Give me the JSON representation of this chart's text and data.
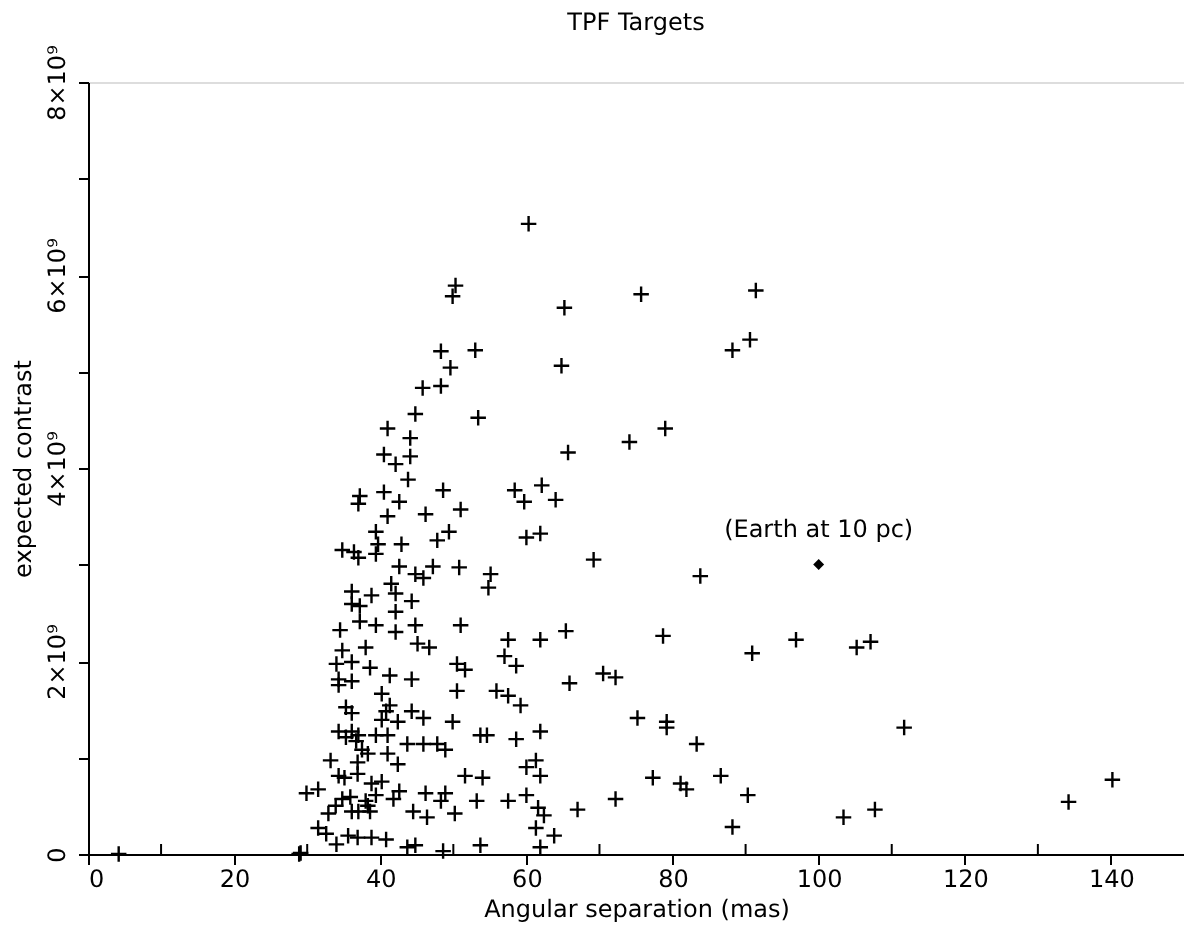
{
  "chart_data": {
    "type": "scatter",
    "title": "TPF Targets",
    "xlabel": "Angular separation (mas)",
    "ylabel": "expected contrast",
    "xlim": [
      0,
      150
    ],
    "ylim": [
      0,
      8000000000.0
    ],
    "xticks": [
      0,
      {
        "value": 10,
        "label": null
      },
      20,
      {
        "value": 30,
        "label": null
      },
      40,
      {
        "value": 50,
        "label": null
      },
      60,
      {
        "value": 70,
        "label": null
      },
      80,
      {
        "value": 90,
        "label": null
      },
      100,
      {
        "value": 110,
        "label": null
      },
      120,
      {
        "value": 130,
        "label": null
      },
      140
    ],
    "yticks": [
      0,
      {
        "value": 1000000000.0,
        "label": null
      },
      {
        "value": 2000000000.0,
        "label": "2×10⁹"
      },
      {
        "value": 3000000000.0,
        "label": null
      },
      {
        "value": 4000000000.0,
        "label": "4×10⁹"
      },
      {
        "value": 5000000000.0,
        "label": null
      },
      {
        "value": 6000000000.0,
        "label": "6×10⁹"
      },
      {
        "value": 7000000000.0,
        "label": null
      },
      {
        "value": 8000000000.0,
        "label": "8×10⁹"
      }
    ],
    "grid": false,
    "series": [
      {
        "type": "scatter",
        "marker": "cross",
        "color": "#000000",
        "x": [
          60.3,
          50.3,
          49.9,
          65.2,
          48.3,
          53.0,
          49.6,
          64.8,
          45.8,
          48.3,
          44.8,
          53.4,
          41.0,
          40.5,
          44.1,
          42.1,
          44.1,
          43.8,
          65.7,
          75.7,
          91.4,
          88.2,
          90.6,
          74.1,
          79.0,
          69.2,
          83.8,
          78.7,
          96.9,
          105.2,
          107.1,
          90.9,
          70.5,
          72.2,
          65.9,
          75.2,
          79.2,
          79.2,
          83.3,
          111.7,
          77.3,
          81.1,
          81.9,
          86.6,
          90.3,
          72.2,
          67.0,
          88.2,
          103.4,
          107.7,
          134.2,
          140.2,
          37.2,
          37.0,
          40.5,
          42.6,
          48.6,
          41.0,
          46.2,
          51.0,
          58.4,
          59.7,
          62.1,
          64.0,
          39.4,
          34.8,
          36.4,
          37.0,
          39.4,
          39.7,
          42.9,
          47.8,
          49.4,
          60.0,
          61.9,
          42.6,
          47.2,
          50.8,
          44.8,
          45.9,
          55.1,
          54.8,
          41.5,
          36.1,
          38.8,
          42.1,
          36.1,
          37.2,
          44.3,
          42.1,
          37.2,
          39.4,
          34.5,
          42.1,
          44.8,
          51.0,
          65.4,
          34.8,
          38.0,
          45.1,
          46.7,
          57.5,
          61.9,
          57.0,
          58.6,
          34.0,
          36.1,
          38.6,
          50.5,
          51.6,
          34.3,
          36.1,
          41.3,
          44.3,
          34.3,
          50.5,
          40.2,
          55.9,
          57.5,
          59.2,
          35.3,
          36.1,
          41.3,
          40.8,
          44.3,
          45.9,
          40.2,
          42.4,
          49.9,
          34.3,
          36.1,
          37.0,
          35.3,
          39.4,
          41.0,
          36.7,
          43.7,
          45.9,
          47.8,
          48.9,
          53.7,
          54.6,
          58.6,
          61.9,
          37.5,
          38.3,
          41.0,
          33.2,
          36.9,
          42.4,
          51.6,
          54.0,
          60.0,
          61.3,
          61.9,
          34.3,
          35.1,
          36.9,
          38.8,
          40.2,
          29.9,
          31.5,
          34.8,
          35.9,
          38.0,
          38.3,
          39.4,
          41.8,
          42.6,
          46.2,
          48.9,
          48.3,
          53.2,
          57.5,
          60.0,
          33.9,
          36.1,
          37.0,
          38.6,
          44.5,
          46.4,
          50.2,
          61.6,
          62.4,
          32.9,
          31.5,
          32.6,
          61.3,
          63.8,
          35.6,
          36.9,
          38.8,
          40.8,
          43.7,
          44.8,
          48.6,
          53.7,
          61.9,
          29.1,
          34.0,
          4.2,
          28.9
        ],
        "values": [
          6530000000.0,
          5890000000.0,
          5780000000.0,
          5660000000.0,
          5210000000.0,
          5220000000.0,
          5040000000.0,
          5060000000.0,
          4830000000.0,
          4850000000.0,
          4560000000.0,
          4520000000.0,
          4410000000.0,
          4140000000.0,
          4310000000.0,
          4040000000.0,
          4120000000.0,
          3880000000.0,
          4160000000.0,
          5800000000.0,
          5840000000.0,
          5220000000.0,
          5330000000.0,
          4270000000.0,
          4410000000.0,
          3050000000.0,
          2880000000.0,
          2260000000.0,
          2220000000.0,
          2140000000.0,
          2200000000.0,
          2080000000.0,
          1870000000.0,
          1830000000.0,
          1770000000.0,
          1410000000.0,
          1370000000.0,
          1310000000.0,
          1140000000.0,
          1310000000.0,
          790000000.0,
          730000000.0,
          670000000.0,
          810000000.0,
          610000000.0,
          570000000.0,
          460000000.0,
          280000000.0,
          380000000.0,
          460000000.0,
          540000000.0,
          770000000.0,
          3710000000.0,
          3630000000.0,
          3750000000.0,
          3650000000.0,
          3770000000.0,
          3500000000.0,
          3520000000.0,
          3570000000.0,
          3770000000.0,
          3650000000.0,
          3820000000.0,
          3670000000.0,
          3340000000.0,
          3150000000.0,
          3130000000.0,
          3070000000.0,
          3110000000.0,
          3210000000.0,
          3210000000.0,
          3250000000.0,
          3340000000.0,
          3280000000.0,
          3320000000.0,
          2980000000.0,
          2980000000.0,
          2970000000.0,
          2900000000.0,
          2860000000.0,
          2900000000.0,
          2760000000.0,
          2800000000.0,
          2720000000.0,
          2680000000.0,
          2700000000.0,
          2590000000.0,
          2570000000.0,
          2620000000.0,
          2510000000.0,
          2410000000.0,
          2370000000.0,
          2320000000.0,
          2300000000.0,
          2370000000.0,
          2370000000.0,
          2310000000.0,
          2110000000.0,
          2140000000.0,
          2180000000.0,
          2140000000.0,
          2220000000.0,
          2220000000.0,
          2050000000.0,
          1950000000.0,
          1970000000.0,
          1990000000.0,
          1930000000.0,
          1970000000.0,
          1910000000.0,
          1810000000.0,
          1790000000.0,
          1850000000.0,
          1810000000.0,
          1750000000.0,
          1690000000.0,
          1660000000.0,
          1690000000.0,
          1640000000.0,
          1540000000.0,
          1520000000.0,
          1460000000.0,
          1540000000.0,
          1480000000.0,
          1480000000.0,
          1410000000.0,
          1390000000.0,
          1370000000.0,
          1370000000.0,
          1270000000.0,
          1270000000.0,
          1230000000.0,
          1210000000.0,
          1230000000.0,
          1230000000.0,
          1170000000.0,
          1140000000.0,
          1140000000.0,
          1140000000.0,
          1080000000.0,
          1230000000.0,
          1230000000.0,
          1190000000.0,
          1270000000.0,
          1080000000.0,
          1040000000.0,
          1040000000.0,
          970000000.0,
          950000000.0,
          930000000.0,
          810000000.0,
          790000000.0,
          900000000.0,
          970000000.0,
          810000000.0,
          810000000.0,
          790000000.0,
          830000000.0,
          730000000.0,
          750000000.0,
          630000000.0,
          670000000.0,
          570000000.0,
          590000000.0,
          550000000.0,
          500000000.0,
          610000000.0,
          570000000.0,
          650000000.0,
          630000000.0,
          630000000.0,
          550000000.0,
          550000000.0,
          550000000.0,
          610000000.0,
          500000000.0,
          440000000.0,
          440000000.0,
          440000000.0,
          440000000.0,
          380000000.0,
          420000000.0,
          480000000.0,
          400000000.0,
          420000000.0,
          270000000.0,
          210000000.0,
          270000000.0,
          190000000.0,
          190000000.0,
          170000000.0,
          170000000.0,
          150000000.0,
          70000000.0,
          90000000.0,
          30000000.0,
          90000000.0,
          70000000.0,
          10000000.0,
          100000000.0,
          0,
          0
        ]
      },
      {
        "type": "scatter",
        "marker": "diamond",
        "color": "#000000",
        "x": [
          100
        ],
        "values": [
          3000000000.0
        ]
      }
    ],
    "annotations": [
      {
        "text": "(Earth at 10 pc)",
        "x": 100,
        "y": 3000000000.0
      }
    ]
  }
}
